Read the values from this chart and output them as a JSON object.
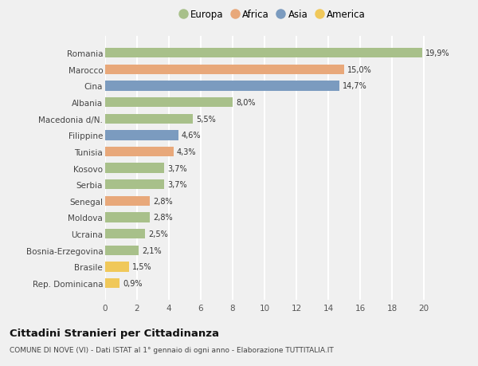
{
  "categories": [
    "Romania",
    "Marocco",
    "Cina",
    "Albania",
    "Macedonia d/N.",
    "Filippine",
    "Tunisia",
    "Kosovo",
    "Serbia",
    "Senegal",
    "Moldova",
    "Ucraina",
    "Bosnia-Erzegovina",
    "Brasile",
    "Rep. Dominicana"
  ],
  "values": [
    19.9,
    15.0,
    14.7,
    8.0,
    5.5,
    4.6,
    4.3,
    3.7,
    3.7,
    2.8,
    2.8,
    2.5,
    2.1,
    1.5,
    0.9
  ],
  "labels": [
    "19,9%",
    "15,0%",
    "14,7%",
    "8,0%",
    "5,5%",
    "4,6%",
    "4,3%",
    "3,7%",
    "3,7%",
    "2,8%",
    "2,8%",
    "2,5%",
    "2,1%",
    "1,5%",
    "0,9%"
  ],
  "continents": [
    "Europa",
    "Africa",
    "Asia",
    "Europa",
    "Europa",
    "Asia",
    "Africa",
    "Europa",
    "Europa",
    "Africa",
    "Europa",
    "Europa",
    "Europa",
    "America",
    "America"
  ],
  "continent_colors": {
    "Europa": "#a8c08a",
    "Africa": "#e8a87a",
    "Asia": "#7b9bbf",
    "America": "#f0c85a"
  },
  "legend_order": [
    "Europa",
    "Africa",
    "Asia",
    "America"
  ],
  "title": "Cittadini Stranieri per Cittadinanza",
  "subtitle": "COMUNE DI NOVE (VI) - Dati ISTAT al 1° gennaio di ogni anno - Elaborazione TUTTITALIA.IT",
  "xlim": [
    0,
    21
  ],
  "xticks": [
    0,
    2,
    4,
    6,
    8,
    10,
    12,
    14,
    16,
    18,
    20
  ],
  "background_color": "#f0f0f0",
  "grid_color": "#ffffff",
  "bar_height": 0.6
}
